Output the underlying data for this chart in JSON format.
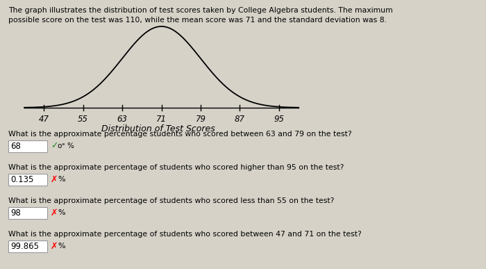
{
  "title_line1": "The graph illustrates the distribution of test scores taken by College Algebra students. The maximum",
  "title_line2": "possible score on the test was 110, while the mean score was 71 and the standard deviation was 8.",
  "mean": 71,
  "std": 8,
  "x_ticks": [
    47,
    55,
    63,
    71,
    79,
    87,
    95
  ],
  "x_label": "Distribution of Test Scores",
  "bg_color": "#d6d2c8",
  "curve_color": "#000000",
  "questions": [
    {
      "text": "What is the approximate percentage students who scored between 63 and 79 on the test?",
      "answer": "68",
      "correct": true
    },
    {
      "text": "What is the approximate percentage of students who scored higher than 95 on the test?",
      "answer": "0.135",
      "correct": false
    },
    {
      "text": "What is the approximate percentage of students who scored less than 55 on the test?",
      "answer": "98",
      "correct": false
    },
    {
      "text": "What is the approximate percentage of students who scored between 47 and 71 on the test?",
      "answer": "99.865",
      "correct": false
    }
  ]
}
